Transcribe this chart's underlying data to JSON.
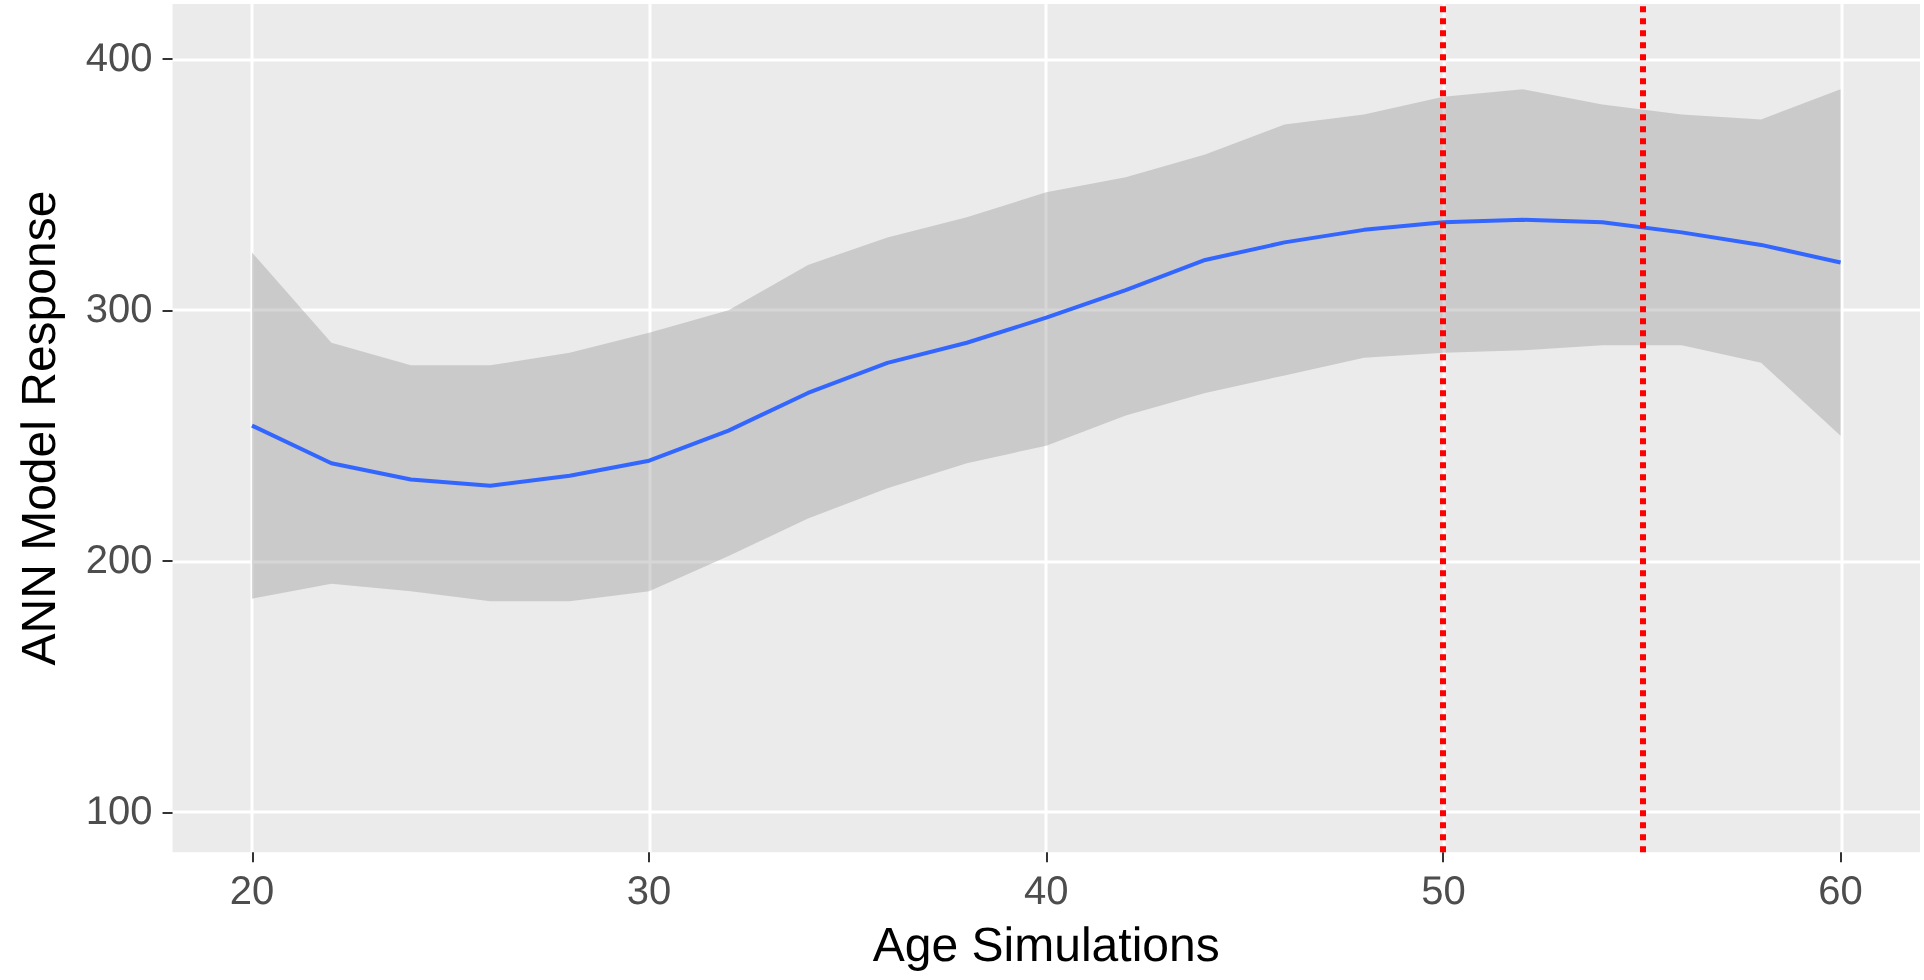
{
  "chart_data": {
    "type": "line",
    "xlabel": "Age Simulations",
    "ylabel": "ANN Model Response",
    "x": [
      20,
      22,
      24,
      26,
      28,
      30,
      32,
      34,
      36,
      38,
      40,
      42,
      44,
      46,
      48,
      50,
      52,
      54,
      56,
      58,
      60
    ],
    "series": [
      {
        "color": "#3366ff",
        "values": [
          254,
          239,
          232.5,
          230,
          234,
          240,
          252,
          267,
          279,
          287,
          297,
          308,
          320,
          327,
          332,
          335,
          336,
          335,
          331,
          326,
          319
        ],
        "lower": [
          185,
          191,
          188,
          184,
          184,
          188,
          202,
          217,
          229,
          239,
          246,
          258,
          267,
          274,
          281,
          283,
          284,
          286,
          286,
          279,
          250
        ],
        "upper": [
          323,
          287,
          278,
          278,
          283,
          291,
          300,
          318,
          329,
          337,
          347,
          353,
          362,
          374,
          378,
          385,
          388,
          382,
          378,
          376,
          388
        ]
      }
    ],
    "xlim": [
      18,
      62
    ],
    "xticks": [
      20,
      30,
      40,
      50,
      60
    ],
    "ylim": [
      84,
      422
    ],
    "yticks": [
      100,
      200,
      300,
      400
    ],
    "grid": true,
    "marker": "none",
    "line_style": "solid",
    "ref_lines": [
      {
        "axis": "x",
        "value": 50,
        "color": "#ff0000",
        "line_style": "dotted"
      },
      {
        "axis": "x",
        "value": 55,
        "color": "#ff0000",
        "line_style": "dotted"
      }
    ]
  }
}
